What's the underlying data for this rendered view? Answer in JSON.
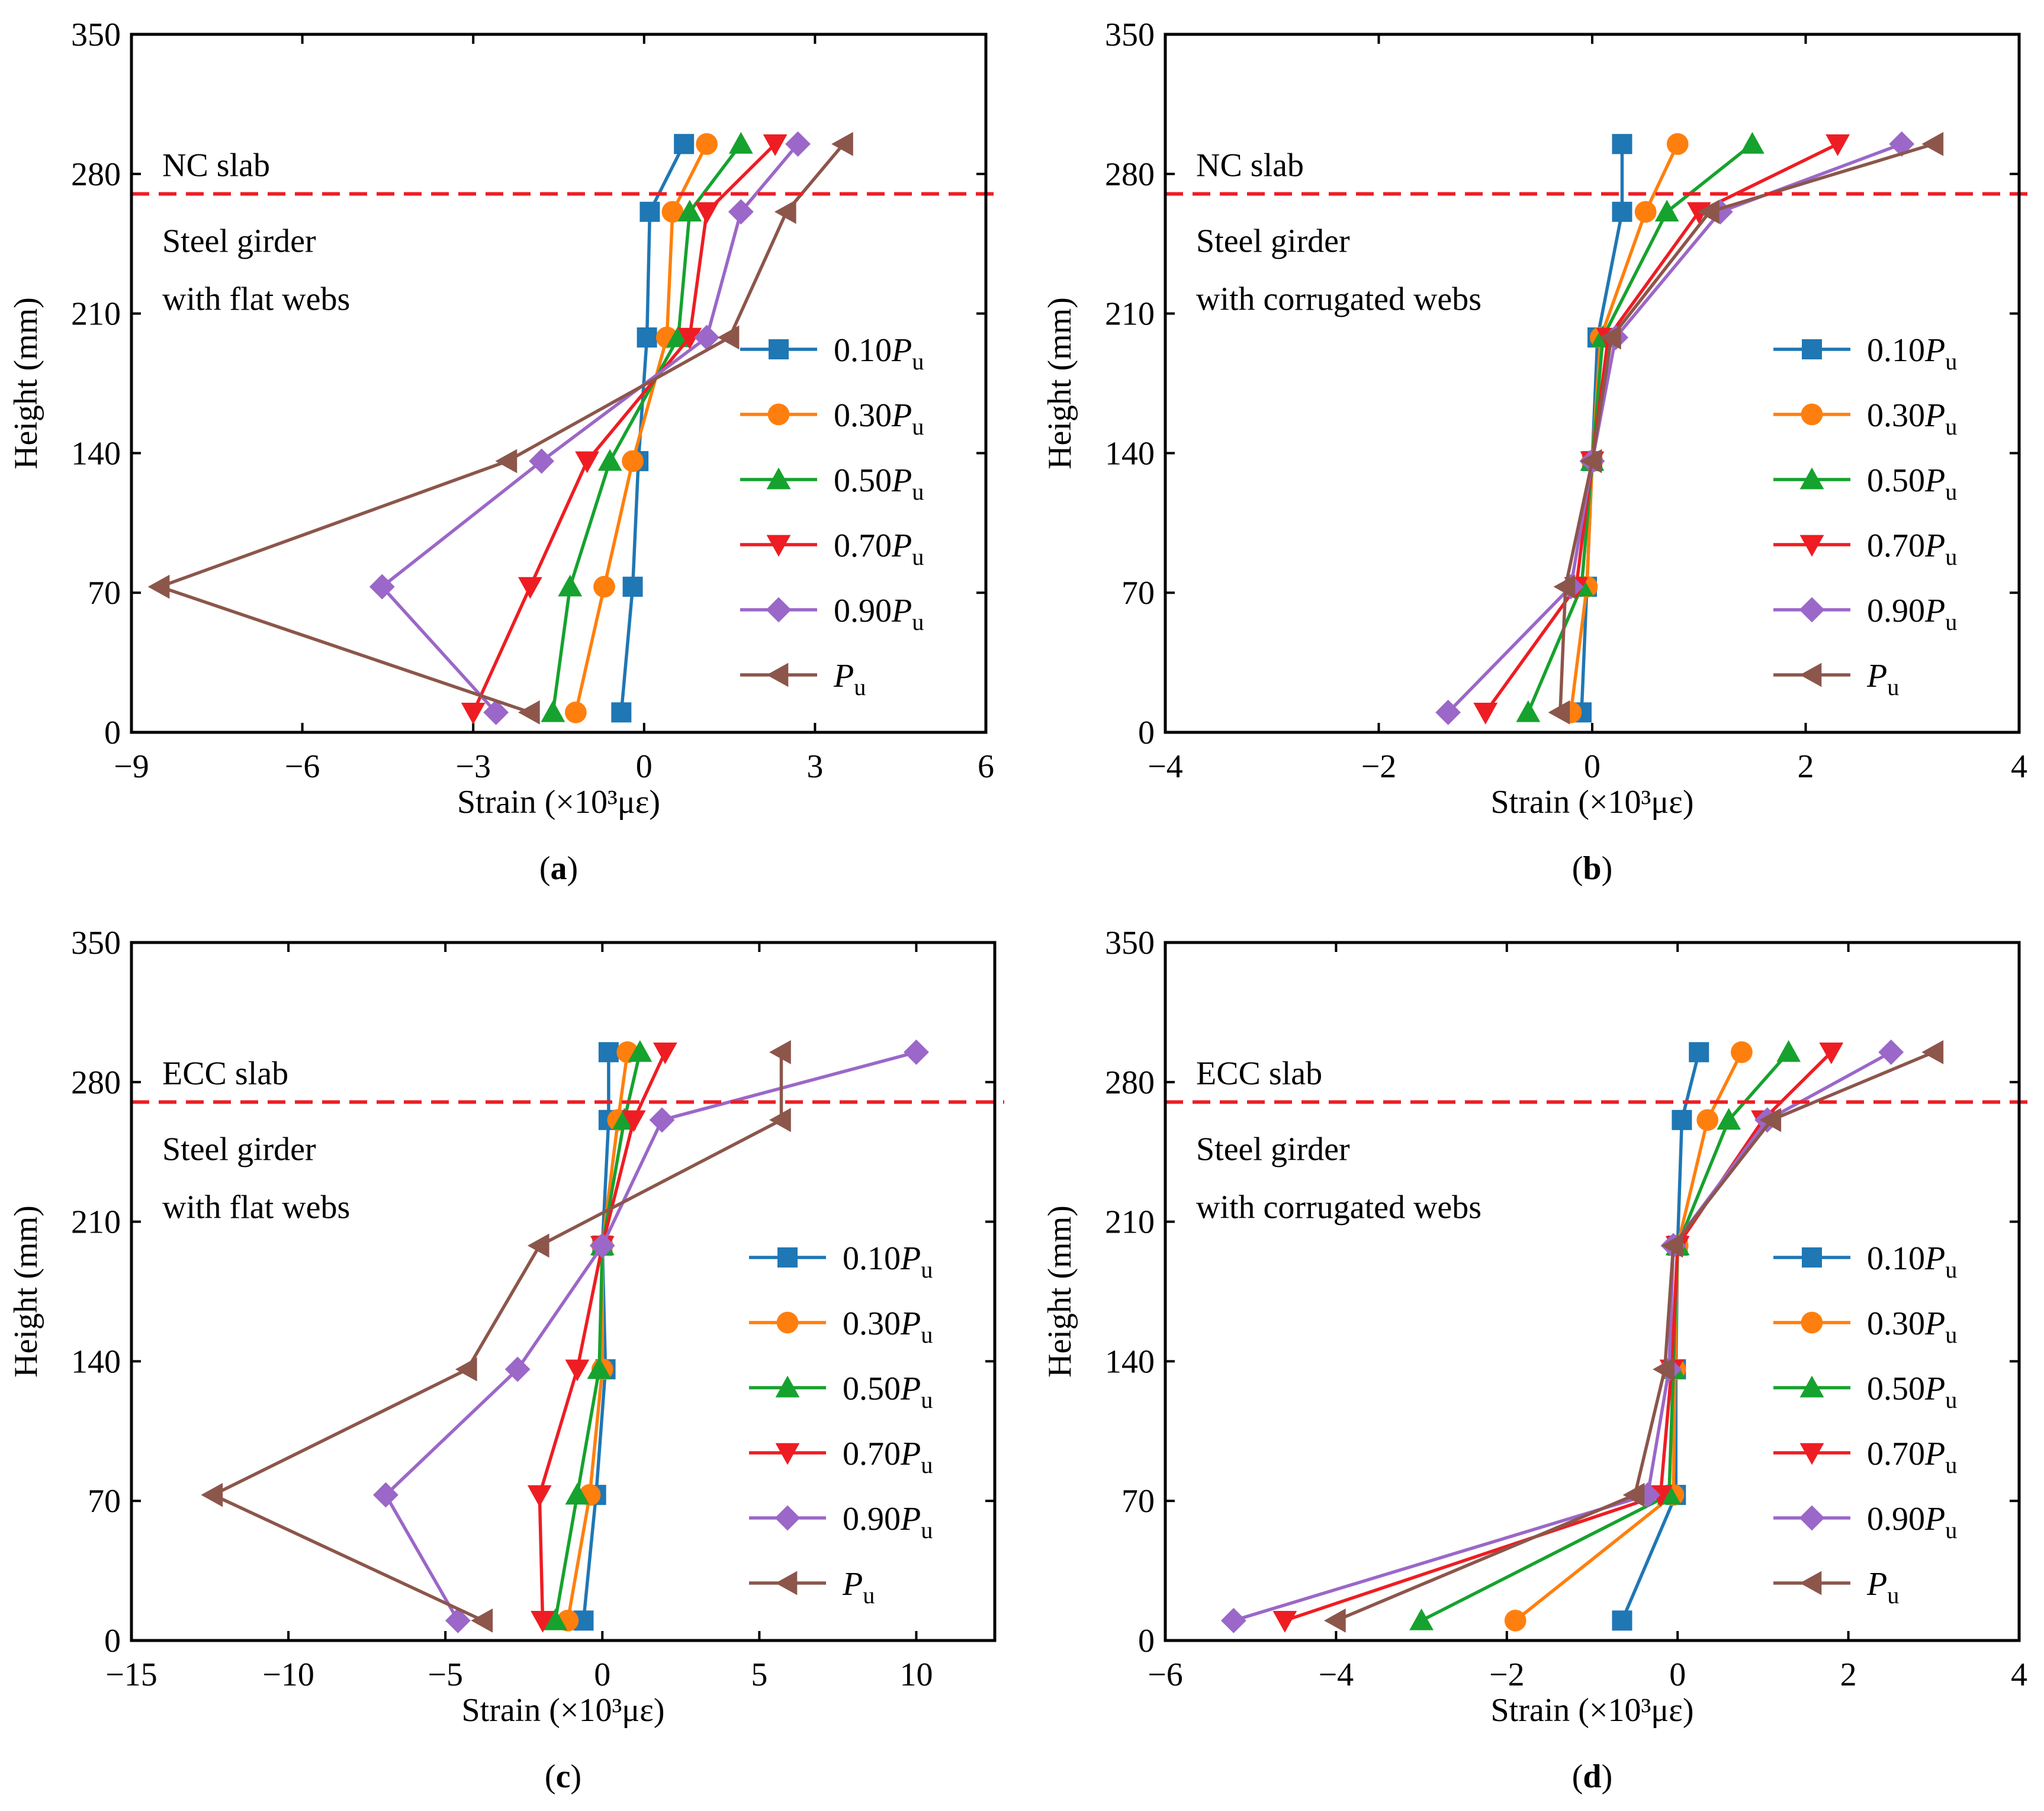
{
  "figure": {
    "series_names": [
      "0.10",
      "0.30",
      "0.50",
      "0.70",
      "0.90",
      ""
    ],
    "load_symbol": "P",
    "load_subscript": "u",
    "colors": [
      "#1f77b4",
      "#ff7f0e",
      "#16a22e",
      "#ee1d23",
      "#9b67c8",
      "#8c564b"
    ],
    "markers": [
      "square",
      "circle",
      "triangle-up",
      "triangle-down",
      "diamond",
      "triangle-left"
    ],
    "divider_color": "#ee1d23",
    "heights_mm": [
      10,
      73,
      136,
      198,
      261,
      295
    ]
  },
  "chart_data": [
    {
      "type": "line",
      "panel_label": "a",
      "xlabel": "Strain (×10³με)",
      "ylabel": "Height (mm)",
      "xlim": [
        -9,
        6
      ],
      "ylim": [
        0,
        350
      ],
      "xticks": [
        -9,
        -6,
        -3,
        0,
        3,
        6
      ],
      "xtick_labels": [
        "−9",
        "−6",
        "−3",
        "0",
        "3",
        "6"
      ],
      "yticks": [
        0,
        70,
        140,
        210,
        280,
        350
      ],
      "ytick_labels": [
        "0",
        "70",
        "140",
        "210",
        "280",
        "350"
      ],
      "divider_height": 270,
      "slab_label": "NC slab",
      "girder_label_line1": "Steel girder",
      "girder_label_line2": "with flat webs",
      "series": [
        {
          "name": "0.10Pu",
          "x": [
            -0.4,
            -0.2,
            -0.1,
            0.05,
            0.1,
            0.7
          ]
        },
        {
          "name": "0.30Pu",
          "x": [
            -1.2,
            -0.7,
            -0.2,
            0.4,
            0.5,
            1.1
          ]
        },
        {
          "name": "0.50Pu",
          "x": [
            -1.6,
            -1.3,
            -0.6,
            0.6,
            0.8,
            1.7
          ]
        },
        {
          "name": "0.70Pu",
          "x": [
            -3.0,
            -2.0,
            -1.0,
            0.8,
            1.1,
            2.3
          ]
        },
        {
          "name": "0.90Pu",
          "x": [
            -2.6,
            -4.6,
            -1.8,
            1.1,
            1.7,
            2.7
          ]
        },
        {
          "name": "Pu",
          "x": [
            -2.0,
            -8.5,
            -2.4,
            1.5,
            2.5,
            3.5
          ]
        }
      ]
    },
    {
      "type": "line",
      "panel_label": "b",
      "xlabel": "Strain (×10³με)",
      "ylabel": "Height (mm)",
      "xlim": [
        -4,
        4
      ],
      "ylim": [
        0,
        350
      ],
      "xticks": [
        -4,
        -2,
        0,
        2,
        4
      ],
      "xtick_labels": [
        "−4",
        "−2",
        "0",
        "2",
        "4"
      ],
      "yticks": [
        0,
        70,
        140,
        210,
        280,
        350
      ],
      "ytick_labels": [
        "0",
        "70",
        "140",
        "210",
        "280",
        "350"
      ],
      "divider_height": 270,
      "slab_label": "NC slab",
      "girder_label_line1": "Steel girder",
      "girder_label_line2": "with corrugated webs",
      "series": [
        {
          "name": "0.10Pu",
          "x": [
            -0.1,
            -0.05,
            0.0,
            0.05,
            0.28,
            0.28
          ]
        },
        {
          "name": "0.30Pu",
          "x": [
            -0.2,
            -0.05,
            0.0,
            0.08,
            0.5,
            0.8
          ]
        },
        {
          "name": "0.50Pu",
          "x": [
            -0.6,
            -0.1,
            0.0,
            0.1,
            0.7,
            1.5
          ]
        },
        {
          "name": "0.70Pu",
          "x": [
            -1.0,
            -0.15,
            0.0,
            0.15,
            1.0,
            2.3
          ]
        },
        {
          "name": "0.90Pu",
          "x": [
            -1.35,
            -0.2,
            0.0,
            0.22,
            1.2,
            2.9
          ]
        },
        {
          "name": "Pu",
          "x": [
            -0.3,
            -0.25,
            0.0,
            0.18,
            1.1,
            3.2
          ]
        }
      ]
    },
    {
      "type": "line",
      "panel_label": "c",
      "xlabel": "Strain (×10³με)",
      "ylabel": "Height (mm)",
      "xlim": [
        -15,
        12.5
      ],
      "ylim": [
        0,
        350
      ],
      "xticks": [
        -15,
        -10,
        -5,
        0,
        5,
        10
      ],
      "xtick_labels": [
        "−15",
        "−10",
        "−5",
        "0",
        "5",
        "10"
      ],
      "yticks": [
        0,
        70,
        140,
        210,
        280,
        350
      ],
      "ytick_labels": [
        "0",
        "70",
        "140",
        "210",
        "280",
        "350"
      ],
      "divider_height": 270,
      "slab_label": "ECC slab",
      "girder_label_line1": "Steel girder",
      "girder_label_line2": "with flat webs",
      "series": [
        {
          "name": "0.10Pu",
          "x": [
            -0.6,
            -0.2,
            0.1,
            0.0,
            0.2,
            0.2
          ]
        },
        {
          "name": "0.30Pu",
          "x": [
            -1.1,
            -0.4,
            0.0,
            0.0,
            0.5,
            0.8
          ]
        },
        {
          "name": "0.50Pu",
          "x": [
            -1.5,
            -0.8,
            -0.1,
            0.0,
            0.7,
            1.2
          ]
        },
        {
          "name": "0.70Pu",
          "x": [
            -1.9,
            -2.0,
            -0.8,
            0.0,
            1.0,
            2.0
          ]
        },
        {
          "name": "0.90Pu",
          "x": [
            -4.6,
            -6.9,
            -2.7,
            0.0,
            1.9,
            10.0
          ]
        },
        {
          "name": "Pu",
          "x": [
            -3.8,
            -12.4,
            -4.3,
            -2.0,
            5.7,
            5.7
          ]
        }
      ]
    },
    {
      "type": "line",
      "panel_label": "d",
      "xlabel": "Strain (×10³με)",
      "ylabel": "Height (mm)",
      "xlim": [
        -6,
        4
      ],
      "ylim": [
        0,
        350
      ],
      "xticks": [
        -6,
        -4,
        -2,
        0,
        2,
        4
      ],
      "xtick_labels": [
        "−6",
        "−4",
        "−2",
        "0",
        "2",
        "4"
      ],
      "yticks": [
        0,
        70,
        140,
        210,
        280,
        350
      ],
      "ytick_labels": [
        "0",
        "70",
        "140",
        "210",
        "280",
        "350"
      ],
      "divider_height": 270,
      "slab_label": "ECC slab",
      "girder_label_line1": "Steel girder",
      "girder_label_line2": "with corrugated webs",
      "series": [
        {
          "name": "0.10Pu",
          "x": [
            -0.65,
            -0.02,
            -0.02,
            0.0,
            0.05,
            0.25
          ]
        },
        {
          "name": "0.30Pu",
          "x": [
            -1.9,
            -0.05,
            -0.03,
            0.0,
            0.35,
            0.75
          ]
        },
        {
          "name": "0.50Pu",
          "x": [
            -3.0,
            -0.1,
            -0.05,
            0.0,
            0.6,
            1.3
          ]
        },
        {
          "name": "0.70Pu",
          "x": [
            -4.6,
            -0.2,
            -0.07,
            0.0,
            1.0,
            1.8
          ]
        },
        {
          "name": "0.90Pu",
          "x": [
            -5.2,
            -0.35,
            -0.1,
            -0.05,
            1.05,
            2.5
          ]
        },
        {
          "name": "Pu",
          "x": [
            -4.0,
            -0.5,
            -0.15,
            -0.05,
            1.1,
            3.0
          ]
        }
      ]
    }
  ]
}
